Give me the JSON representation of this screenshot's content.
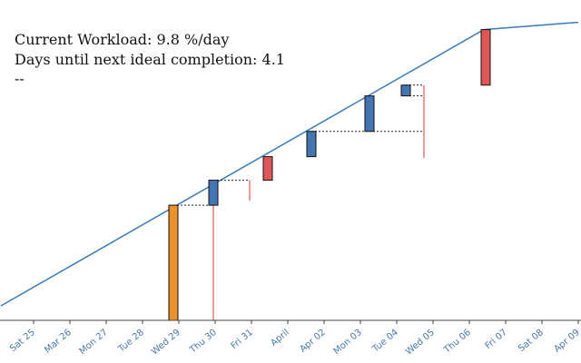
{
  "stats": {
    "workload_label": "Current Workload:",
    "workload_value": "9.8 %/day",
    "days_label": "Days until next ideal completion:",
    "days_value": "4.1",
    "extra": "--"
  },
  "chart_data": {
    "type": "bar",
    "x_tick_labels": [
      "Sat 25",
      "Mar 26",
      "Mon 27",
      "Tue 28",
      "Wed 29",
      "Thu 30",
      "Fri 31",
      "April",
      "Apr 02",
      "Mon 03",
      "Tue 04",
      "Wed 05",
      "Thu 06",
      "Fri 07",
      "Sat 08",
      "Apr 09"
    ],
    "ideal_line": [
      {
        "x": -0.9,
        "y": 5
      },
      {
        "x": 12.4,
        "y": 100
      },
      {
        "x": 15.0,
        "y": 102.5
      }
    ],
    "ylim": [
      0,
      103
    ],
    "bars": [
      {
        "x": 3.85,
        "y0": 0,
        "y1": 39.6,
        "color": "#e8912d"
      },
      {
        "x": 4.95,
        "y0": 39.6,
        "y1": 48.2,
        "color": "#4575b0"
      },
      {
        "x": 6.45,
        "y0": 48.2,
        "y1": 56.3,
        "color": "#e05555"
      },
      {
        "x": 7.65,
        "y0": 56.3,
        "y1": 65.0,
        "color": "#4575b0"
      },
      {
        "x": 9.25,
        "y0": 65.0,
        "y1": 77.2,
        "color": "#4575b0"
      },
      {
        "x": 10.25,
        "y0": 77.2,
        "y1": 80.9,
        "color": "#4575b0"
      },
      {
        "x": 12.45,
        "y0": 80.9,
        "y1": 100.0,
        "color": "#e05555"
      }
    ],
    "dotted_links": [
      {
        "x0": 3.85,
        "x1": 4.95,
        "y": 39.6
      },
      {
        "x0": 4.95,
        "x1": 5.95,
        "y": 48.2
      },
      {
        "x0": 7.65,
        "x1": 10.75,
        "y": 65.0
      },
      {
        "x0": 10.25,
        "x1": 10.75,
        "y": 77.2
      },
      {
        "x0": 10.25,
        "x1": 10.75,
        "y": 80.9
      }
    ],
    "red_stems": [
      {
        "x": 4.95,
        "y0": 0,
        "y1": 39.6
      },
      {
        "x": 5.95,
        "y0": 41.2,
        "y1": 48.2
      },
      {
        "x": 10.75,
        "y0": 55.9,
        "y1": 80.9
      }
    ],
    "colors": {
      "ideal_line": "#3a7ab8",
      "axis": "#444444",
      "tick_label": "#4a78a8",
      "dotted": "#222222"
    }
  }
}
